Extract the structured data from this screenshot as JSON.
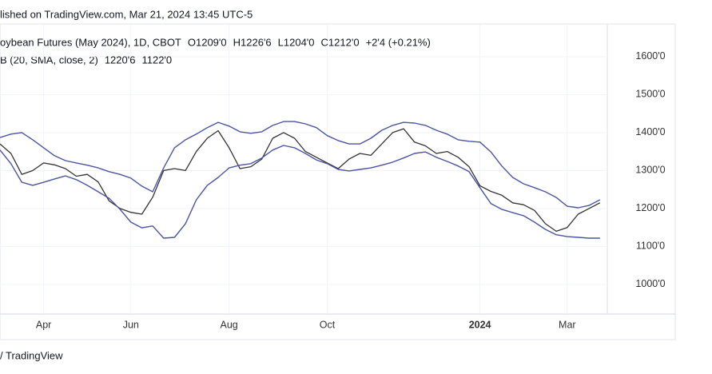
{
  "chart_data": {
    "type": "line",
    "published": "lished on TradingView.com, Mar 21, 2024 13:45 UTC-5",
    "title": "oybean Futures (May 2024), 1D, CBOT",
    "ohlc": [
      "O1209'0",
      "H1226'6",
      "L1204'0",
      "C1212'0",
      "+2'4 (+0.21%)"
    ],
    "ohlc_color": "#22ab94",
    "indicator": "B (20, SMA, close, 2)",
    "indicator_values": [
      "1220'6",
      "1122'0"
    ],
    "footer": "/ TradingView",
    "categories": [
      null,
      null,
      null,
      null,
      "Apr",
      null,
      null,
      null,
      null,
      null,
      null,
      null,
      "Jun",
      null,
      null,
      null,
      null,
      null,
      null,
      null,
      null,
      "Aug",
      null,
      null,
      null,
      null,
      null,
      null,
      null,
      null,
      "Oct",
      null,
      null,
      null,
      null,
      null,
      null,
      null,
      null,
      null,
      null,
      null,
      null,
      null,
      "2024",
      null,
      null,
      null,
      null,
      null,
      null,
      null,
      "Mar",
      null,
      null,
      null
    ],
    "series": [
      {
        "color": "#333333",
        "values": [
          1370,
          1345,
          1290,
          1300,
          1320,
          1315,
          1305,
          1285,
          1290,
          1270,
          1220,
          1200,
          1190,
          1185,
          1230,
          1300,
          1305,
          1300,
          1350,
          1385,
          1405,
          1360,
          1305,
          1310,
          1330,
          1385,
          1400,
          1385,
          1350,
          1335,
          1320,
          1305,
          1330,
          1345,
          1340,
          1370,
          1400,
          1410,
          1375,
          1365,
          1345,
          1350,
          1335,
          1310,
          1260,
          1245,
          1235,
          1215,
          1210,
          1195,
          1160,
          1140,
          1150,
          1185,
          1200,
          1215
        ]
      },
      {
        "color": "#4a55a2",
        "values": [
          1387,
          1396,
          1400,
          1381,
          1360,
          1339,
          1326,
          1320,
          1314,
          1307,
          1297,
          1290,
          1280,
          1259,
          1244,
          1307,
          1360,
          1381,
          1396,
          1413,
          1427,
          1417,
          1402,
          1398,
          1402,
          1419,
          1429,
          1429,
          1423,
          1413,
          1392,
          1379,
          1370,
          1370,
          1385,
          1406,
          1419,
          1427,
          1425,
          1419,
          1406,
          1396,
          1381,
          1377,
          1375,
          1349,
          1312,
          1282,
          1265,
          1255,
          1244,
          1229,
          1206,
          1202,
          1208,
          1223
        ]
      },
      {
        "color": "#4a55a2",
        "values": [
          1354,
          1318,
          1269,
          1261,
          1269,
          1278,
          1286,
          1276,
          1261,
          1244,
          1227,
          1198,
          1164,
          1149,
          1154,
          1122,
          1124,
          1160,
          1223,
          1261,
          1282,
          1307,
          1314,
          1318,
          1333,
          1354,
          1366,
          1360,
          1345,
          1328,
          1318,
          1303,
          1299,
          1303,
          1307,
          1314,
          1322,
          1333,
          1345,
          1349,
          1335,
          1324,
          1312,
          1297,
          1255,
          1213,
          1198,
          1189,
          1181,
          1164,
          1145,
          1131,
          1126,
          1124,
          1122,
          1122
        ]
      }
    ],
    "ylim": [
      922,
      1686
    ],
    "yticks": [
      {
        "value": 1000,
        "label": "1000'0"
      },
      {
        "value": 1100,
        "label": "1100'0"
      },
      {
        "value": 1200,
        "label": "1200'0"
      },
      {
        "value": 1300,
        "label": "1300'0"
      },
      {
        "value": 1400,
        "label": "1400'0"
      },
      {
        "value": 1500,
        "label": "1500'0"
      },
      {
        "value": 1600,
        "label": "1600'0"
      }
    ],
    "grid": true
  }
}
